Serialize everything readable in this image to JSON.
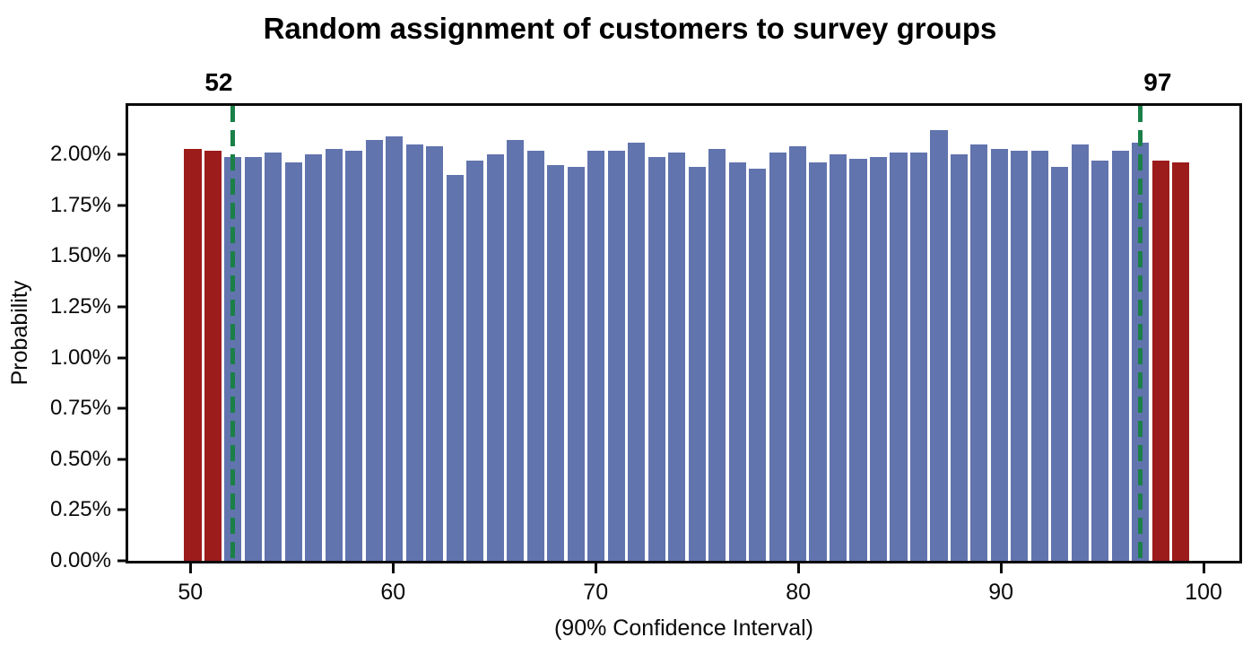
{
  "title": "Random assignment of customers to survey groups",
  "chart_data": {
    "type": "bar",
    "title": "Random assignment of customers to survey groups",
    "xlabel": "(90% Confidence Interval)",
    "ylabel": "Probability",
    "grid": false,
    "legend": "none",
    "xlim": [
      46.8,
      101.9
    ],
    "ylim": [
      0,
      2.24
    ],
    "bar_width": 0.85,
    "x": [
      50,
      51,
      52,
      53,
      54,
      55,
      56,
      57,
      58,
      59,
      60,
      61,
      62,
      63,
      64,
      65,
      66,
      67,
      68,
      69,
      70,
      71,
      72,
      73,
      74,
      75,
      76,
      77,
      78,
      79,
      80,
      81,
      82,
      83,
      84,
      85,
      86,
      87,
      88,
      89,
      90,
      91,
      92,
      93,
      94,
      95,
      96,
      97,
      98,
      99
    ],
    "values": [
      2.03,
      2.02,
      1.99,
      1.99,
      2.01,
      1.96,
      2.0,
      2.03,
      2.02,
      2.07,
      2.09,
      2.05,
      2.04,
      1.9,
      1.97,
      2.0,
      2.07,
      2.02,
      1.95,
      1.94,
      2.02,
      2.02,
      2.06,
      1.99,
      2.01,
      1.94,
      2.03,
      1.96,
      1.93,
      2.01,
      2.04,
      1.96,
      2.0,
      1.98,
      1.99,
      2.01,
      2.01,
      2.12,
      2.0,
      2.05,
      2.03,
      2.02,
      2.02,
      1.94,
      2.05,
      1.97,
      2.02,
      2.06,
      1.97,
      1.96
    ],
    "values_unit": "percent",
    "interval": {
      "lower": 52,
      "upper": 97,
      "label_lower": "52",
      "label_upper": "97",
      "line_style": "dashed"
    },
    "x_ticks": [
      50,
      60,
      70,
      80,
      90,
      100
    ],
    "y_ticks": [
      {
        "label": "0.00%",
        "value": 0
      },
      {
        "label": "0.25%",
        "value": 0.25
      },
      {
        "label": "0.50%",
        "value": 0.5
      },
      {
        "label": "0.75%",
        "value": 0.75
      },
      {
        "label": "1.00%",
        "value": 1.0
      },
      {
        "label": "1.25%",
        "value": 1.25
      },
      {
        "label": "1.50%",
        "value": 1.5
      },
      {
        "label": "1.75%",
        "value": 1.75
      },
      {
        "label": "2.00%",
        "value": 2.0
      }
    ],
    "colors": {
      "bar_inside_interval": "#6174ae",
      "bar_outside_interval": "#9c1c1c",
      "interval_line": "#1a8048",
      "axis": "#0a0a0a"
    }
  }
}
